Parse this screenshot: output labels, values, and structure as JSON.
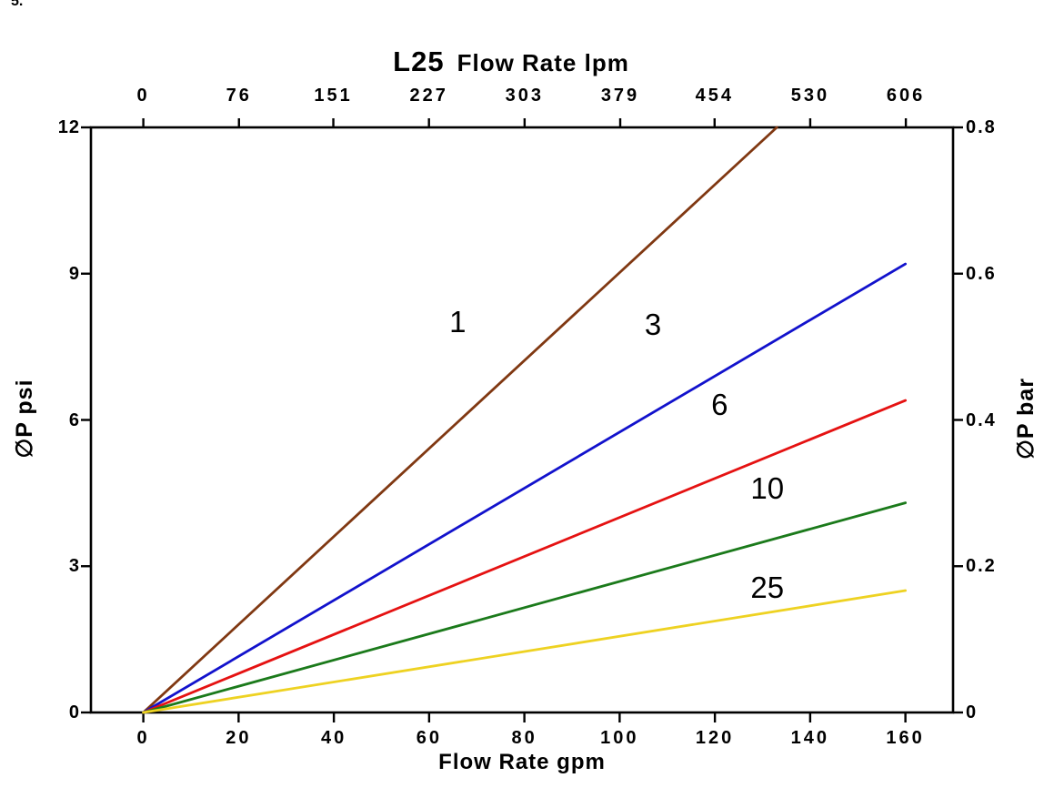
{
  "page": {
    "background": "#ffffff",
    "corner_fragment": "5."
  },
  "chart_data": {
    "type": "line",
    "title_main": "L25",
    "title_rest": "Flow Rate lpm",
    "legend_position": "inline-labels",
    "grid": false,
    "lpm_per_gpm": 3.7854,
    "x_range_gpm": [
      -11,
      170
    ],
    "top_axis": {
      "unit": "lpm",
      "ticks_lpm": [
        0,
        76,
        151,
        227,
        303,
        379,
        454,
        530,
        606
      ]
    },
    "bottom_axis": {
      "label": "Flow Rate gpm",
      "unit": "gpm",
      "ticks_gpm": [
        0,
        20,
        40,
        60,
        80,
        100,
        120,
        140,
        160
      ]
    },
    "left_axis": {
      "label": "∅P psi",
      "unit": "psi",
      "range": [
        0,
        12
      ],
      "ticks_psi": [
        0,
        3,
        6,
        9,
        12
      ]
    },
    "right_axis": {
      "label": "∅P bar",
      "unit": "bar",
      "range": [
        0,
        0.8
      ],
      "ticks_bar": [
        "0",
        "0.2",
        "0.4",
        "0.6",
        "0.8"
      ]
    },
    "series": [
      {
        "label": "1",
        "color": "#803812",
        "points_gpm_psi": [
          [
            0,
            0
          ],
          [
            133,
            12
          ]
        ],
        "label_at_gpm_psi": [
          66,
          8.0
        ]
      },
      {
        "label": "3",
        "color": "#1212cc",
        "points_gpm_psi": [
          [
            0,
            0
          ],
          [
            160,
            9.2
          ]
        ],
        "label_at_gpm_psi": [
          107,
          7.95
        ]
      },
      {
        "label": "6",
        "color": "#e51212",
        "points_gpm_psi": [
          [
            0,
            0
          ],
          [
            160,
            6.4
          ]
        ],
        "label_at_gpm_psi": [
          121,
          6.3
        ]
      },
      {
        "label": "10",
        "color": "#1b7a1b",
        "points_gpm_psi": [
          [
            0,
            0
          ],
          [
            160,
            4.3
          ]
        ],
        "label_at_gpm_psi": [
          131,
          4.6
        ]
      },
      {
        "label": "25",
        "color": "#eed222",
        "points_gpm_psi": [
          [
            0,
            0
          ],
          [
            160,
            2.5
          ]
        ],
        "label_at_gpm_psi": [
          131,
          2.55
        ]
      }
    ]
  }
}
